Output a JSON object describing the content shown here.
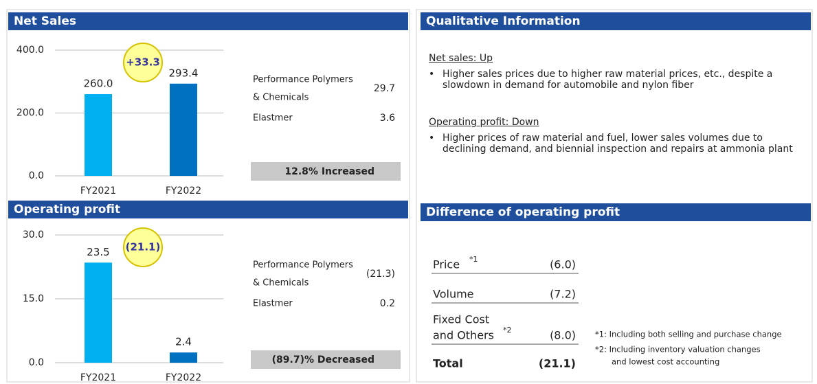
{
  "chart_data": [
    {
      "type": "bar",
      "title": "Net Sales",
      "categories": [
        "FY2021",
        "FY2022"
      ],
      "values": [
        260.0,
        293.4
      ],
      "value_labels": [
        "260.0",
        "293.4"
      ],
      "colors": [
        "#00b0f0",
        "#0070c0"
      ],
      "ylim": [
        0,
        400
      ],
      "yticks": [
        {
          "value": 0,
          "label": "0.0"
        },
        {
          "value": 200,
          "label": "200.0"
        },
        {
          "value": 400,
          "label": "400.0"
        }
      ],
      "grid": true,
      "annotation": "+33.3"
    },
    {
      "type": "bar",
      "title": "Operating profit",
      "categories": [
        "FY2021",
        "FY2022"
      ],
      "values": [
        23.5,
        2.4
      ],
      "colors": [
        "#00b0f0",
        "#0070c0"
      ],
      "ylim": [
        0,
        30
      ],
      "yticks": [
        {
          "value": 0,
          "label": "0.0"
        },
        {
          "value": 15,
          "label": "15.0"
        },
        {
          "value": 30,
          "label": "30.0"
        }
      ],
      "grid": true,
      "annotation": "(21.1)"
    }
  ],
  "breakdowns": [
    {
      "items": [
        {
          "name_lines": [
            "Performance Polymers",
            "& Chemicals"
          ],
          "value": 29.7
        },
        {
          "name_lines": [
            "Elastmer"
          ],
          "value": 3.6
        }
      ],
      "summary": "12.8% Increased"
    },
    {
      "items": [
        {
          "name_lines": [
            "Performance Polymers",
            "& Chemicals"
          ],
          "value": {
            "value": -21.3,
            "label": "(21.3)"
          }
        },
        {
          "name_lines": [
            "Elastmer"
          ],
          "value": 0.2
        }
      ],
      "summary": "(89.7)% Decreased"
    }
  ],
  "qualitative": {
    "title": "Qualitative Information",
    "sections": [
      {
        "heading": "Net sales: Up",
        "bullets": [
          "Higher sales prices due to higher raw material prices, etc., despite a slowdown in demand for automobile and nylon fiber"
        ]
      },
      {
        "heading": "Operating profit: Down",
        "bullets": [
          "Higher prices of raw material and fuel, lower sales volumes due to declining demand, and biennial inspection and repairs at ammonia plant"
        ]
      }
    ]
  },
  "difference": {
    "title": "Difference of operating profit",
    "rows": [
      {
        "label_lines": [
          "Price"
        ],
        "note": "*1",
        "value": "(6.0)"
      },
      {
        "label_lines": [
          "Volume"
        ],
        "value": "(7.2)"
      },
      {
        "label_lines": [
          "Fixed Cost",
          "and Others"
        ],
        "note": "*2",
        "value": "(8.0)"
      }
    ],
    "total": {
      "label": "Total",
      "value": "(21.1)"
    },
    "footnotes": [
      "*1: Including both selling and purchase change",
      "*2: Including inventory valuation changes",
      "and lowest cost accounting"
    ]
  }
}
